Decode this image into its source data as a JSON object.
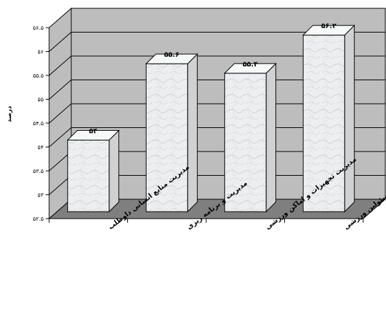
{
  "chart_data": {
    "type": "bar",
    "title": "",
    "xlabel": "",
    "ylabel": "درصد",
    "ylim": [
      52.5,
      56.5
    ],
    "yticks": [
      "۵۲.۵",
      "۵۳",
      "۵۳.۵",
      "۵۴",
      "۵۴.۵",
      "۵۵",
      "۵۵.۵",
      "۵۶",
      "۵۶.۵"
    ],
    "grid": true,
    "three_d": true,
    "categories": [
      "مدیریت منابع انسانی داوطلب",
      "مدیریت و برنامه ریزی",
      "مدیریت تجهیزات و اماکن ورزشی",
      "ارتباط و هماهنگی با مسئولین ورزشی"
    ],
    "values": [
      54,
      55.6,
      55.4,
      56.2
    ],
    "data_labels": [
      "۵۴",
      "۵۵.۶",
      "۵۵.۴",
      "۵۶.۲"
    ],
    "colors": {
      "wall": "#bdbdbd",
      "floor": "#7f7f7f",
      "bar_front": "#eceeef",
      "bar_side": "#cfd1d3",
      "bar_top": "#f7f8f8",
      "outline": "#000000"
    }
  }
}
